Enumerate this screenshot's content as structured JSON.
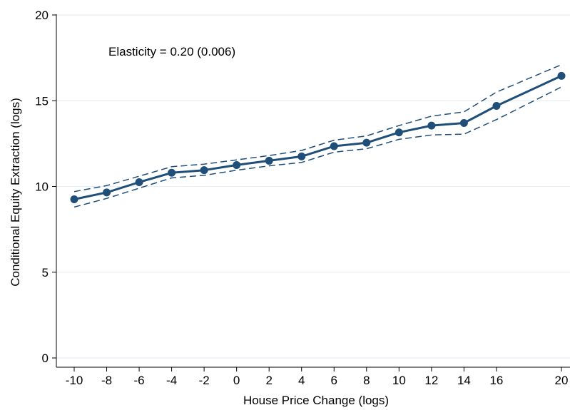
{
  "chart_data": {
    "type": "line",
    "title": "",
    "xlabel": "House Price Change (logs)",
    "ylabel": "Conditional Equity Extraction (logs)",
    "xlim": [
      -10,
      20
    ],
    "ylim": [
      0,
      20
    ],
    "x_ticks": [
      -10,
      -8,
      -6,
      -4,
      -2,
      0,
      2,
      4,
      6,
      8,
      10,
      12,
      14,
      16,
      20
    ],
    "x_tick_labels": [
      "-10",
      "-8",
      "-6",
      "-4",
      "-2",
      "0",
      "2",
      "4",
      "6",
      "8",
      "10",
      "12",
      "14",
      "16",
      "20"
    ],
    "y_ticks": [
      0,
      5,
      10,
      15,
      20
    ],
    "y_tick_labels": [
      "0",
      "5",
      "10",
      "15",
      "20"
    ],
    "grid": "horizontal",
    "annotation": "Elasticity = 0.20 (0.006)",
    "x": [
      -10,
      -8,
      -6,
      -4,
      -2,
      0,
      2,
      4,
      6,
      8,
      10,
      12,
      14,
      16,
      20
    ],
    "series": [
      {
        "role": "estimate",
        "values": [
          9.25,
          9.65,
          10.25,
          10.8,
          10.95,
          11.25,
          11.5,
          11.75,
          12.35,
          12.55,
          13.15,
          13.55,
          13.7,
          14.7,
          16.45
        ],
        "style": "solid",
        "markers": true,
        "color": "#1f4e79"
      },
      {
        "role": "upper-ci",
        "values": [
          9.7,
          10.05,
          10.6,
          11.15,
          11.3,
          11.55,
          11.8,
          12.1,
          12.7,
          12.95,
          13.55,
          14.1,
          14.35,
          15.5,
          17.1
        ],
        "style": "dashed",
        "markers": false,
        "color": "#1f4e79"
      },
      {
        "role": "lower-ci",
        "values": [
          8.8,
          9.3,
          9.9,
          10.5,
          10.65,
          10.95,
          11.2,
          11.4,
          12.0,
          12.2,
          12.75,
          13.0,
          13.05,
          13.9,
          15.8
        ],
        "style": "dashed",
        "markers": false,
        "color": "#1f4e79"
      }
    ],
    "colors": {
      "line": "#1f4e79",
      "grid": "#e8eef3",
      "axis": "#000000",
      "background": "#ffffff"
    }
  }
}
